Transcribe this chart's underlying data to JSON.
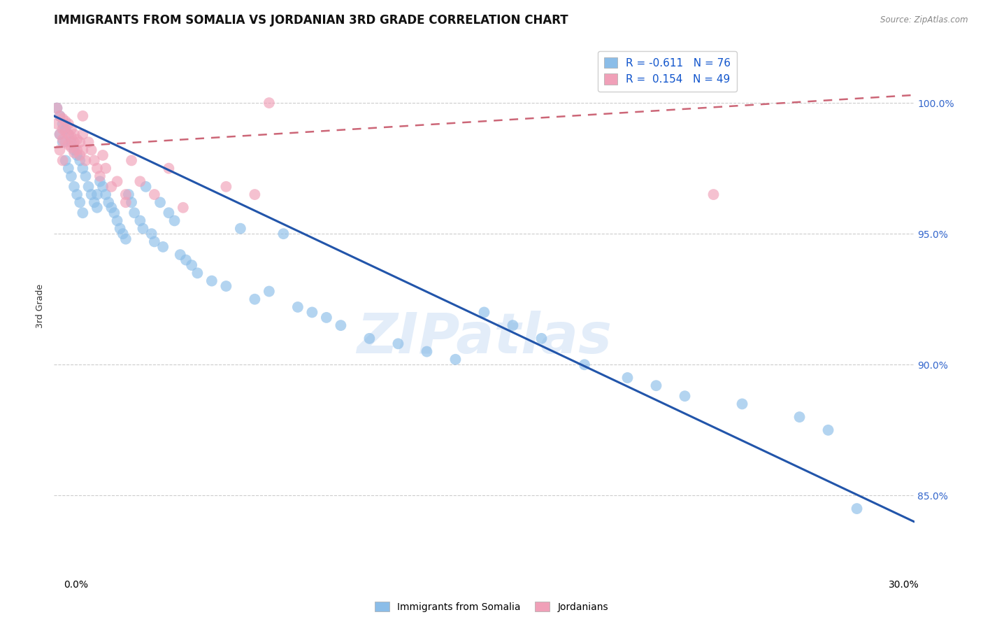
{
  "title": "IMMIGRANTS FROM SOMALIA VS JORDANIAN 3RD GRADE CORRELATION CHART",
  "source": "Source: ZipAtlas.com",
  "ylabel": "3rd Grade",
  "watermark": "ZIPatlas",
  "somalia_color": "#8bbde8",
  "jordan_color": "#f0a0b8",
  "somalia_line_color": "#2255aa",
  "jordan_line_color": "#cc6677",
  "background_color": "#ffffff",
  "grid_color": "#cccccc",
  "title_fontsize": 12,
  "axis_label_fontsize": 9,
  "tick_fontsize": 9,
  "xmin": 0.0,
  "xmax": 0.3,
  "ymin": 82.0,
  "ymax": 102.5,
  "ytick_vals": [
    85.0,
    90.0,
    95.0,
    100.0
  ],
  "somalia_line_x0": 0.0,
  "somalia_line_y0": 99.5,
  "somalia_line_x1": 0.3,
  "somalia_line_y1": 84.0,
  "jordan_line_x0": 0.0,
  "jordan_line_y0": 98.3,
  "jordan_line_x1": 0.3,
  "jordan_line_y1": 100.3,
  "somalia_pts_x": [
    0.001,
    0.002,
    0.002,
    0.003,
    0.003,
    0.004,
    0.004,
    0.005,
    0.005,
    0.006,
    0.006,
    0.007,
    0.007,
    0.008,
    0.008,
    0.009,
    0.009,
    0.01,
    0.01,
    0.011,
    0.012,
    0.013,
    0.014,
    0.015,
    0.016,
    0.017,
    0.018,
    0.019,
    0.02,
    0.021,
    0.022,
    0.023,
    0.024,
    0.025,
    0.026,
    0.027,
    0.028,
    0.03,
    0.031,
    0.032,
    0.034,
    0.035,
    0.037,
    0.038,
    0.04,
    0.042,
    0.044,
    0.046,
    0.048,
    0.05,
    0.055,
    0.06,
    0.065,
    0.07,
    0.075,
    0.08,
    0.085,
    0.09,
    0.095,
    0.1,
    0.11,
    0.12,
    0.13,
    0.14,
    0.15,
    0.16,
    0.17,
    0.185,
    0.2,
    0.21,
    0.22,
    0.24,
    0.26,
    0.27,
    0.28,
    0.015
  ],
  "somalia_pts_y": [
    99.8,
    99.5,
    98.8,
    99.2,
    98.5,
    99.0,
    97.8,
    98.8,
    97.5,
    98.5,
    97.2,
    98.2,
    96.8,
    98.0,
    96.5,
    97.8,
    96.2,
    97.5,
    95.8,
    97.2,
    96.8,
    96.5,
    96.2,
    96.0,
    97.0,
    96.8,
    96.5,
    96.2,
    96.0,
    95.8,
    95.5,
    95.2,
    95.0,
    94.8,
    96.5,
    96.2,
    95.8,
    95.5,
    95.2,
    96.8,
    95.0,
    94.7,
    96.2,
    94.5,
    95.8,
    95.5,
    94.2,
    94.0,
    93.8,
    93.5,
    93.2,
    93.0,
    95.2,
    92.5,
    92.8,
    95.0,
    92.2,
    92.0,
    91.8,
    91.5,
    91.0,
    90.8,
    90.5,
    90.2,
    92.0,
    91.5,
    91.0,
    90.0,
    89.5,
    89.2,
    88.8,
    88.5,
    88.0,
    87.5,
    84.5,
    96.5
  ],
  "jordan_pts_x": [
    0.001,
    0.001,
    0.002,
    0.002,
    0.002,
    0.003,
    0.003,
    0.003,
    0.003,
    0.004,
    0.004,
    0.004,
    0.005,
    0.005,
    0.005,
    0.006,
    0.006,
    0.006,
    0.007,
    0.007,
    0.007,
    0.008,
    0.008,
    0.009,
    0.009,
    0.01,
    0.01,
    0.01,
    0.011,
    0.012,
    0.013,
    0.014,
    0.015,
    0.016,
    0.017,
    0.018,
    0.02,
    0.022,
    0.025,
    0.027,
    0.03,
    0.035,
    0.04,
    0.045,
    0.06,
    0.07,
    0.075,
    0.23,
    0.025
  ],
  "jordan_pts_y": [
    99.8,
    99.2,
    99.5,
    98.8,
    98.2,
    99.4,
    99.0,
    98.6,
    97.8,
    99.3,
    98.9,
    98.5,
    99.2,
    98.8,
    98.4,
    99.0,
    98.7,
    98.3,
    98.8,
    98.5,
    98.1,
    98.6,
    98.2,
    98.5,
    98.0,
    99.5,
    98.8,
    98.2,
    97.8,
    98.5,
    98.2,
    97.8,
    97.5,
    97.2,
    98.0,
    97.5,
    96.8,
    97.0,
    96.5,
    97.8,
    97.0,
    96.5,
    97.5,
    96.0,
    96.8,
    96.5,
    100.0,
    96.5,
    96.2
  ]
}
